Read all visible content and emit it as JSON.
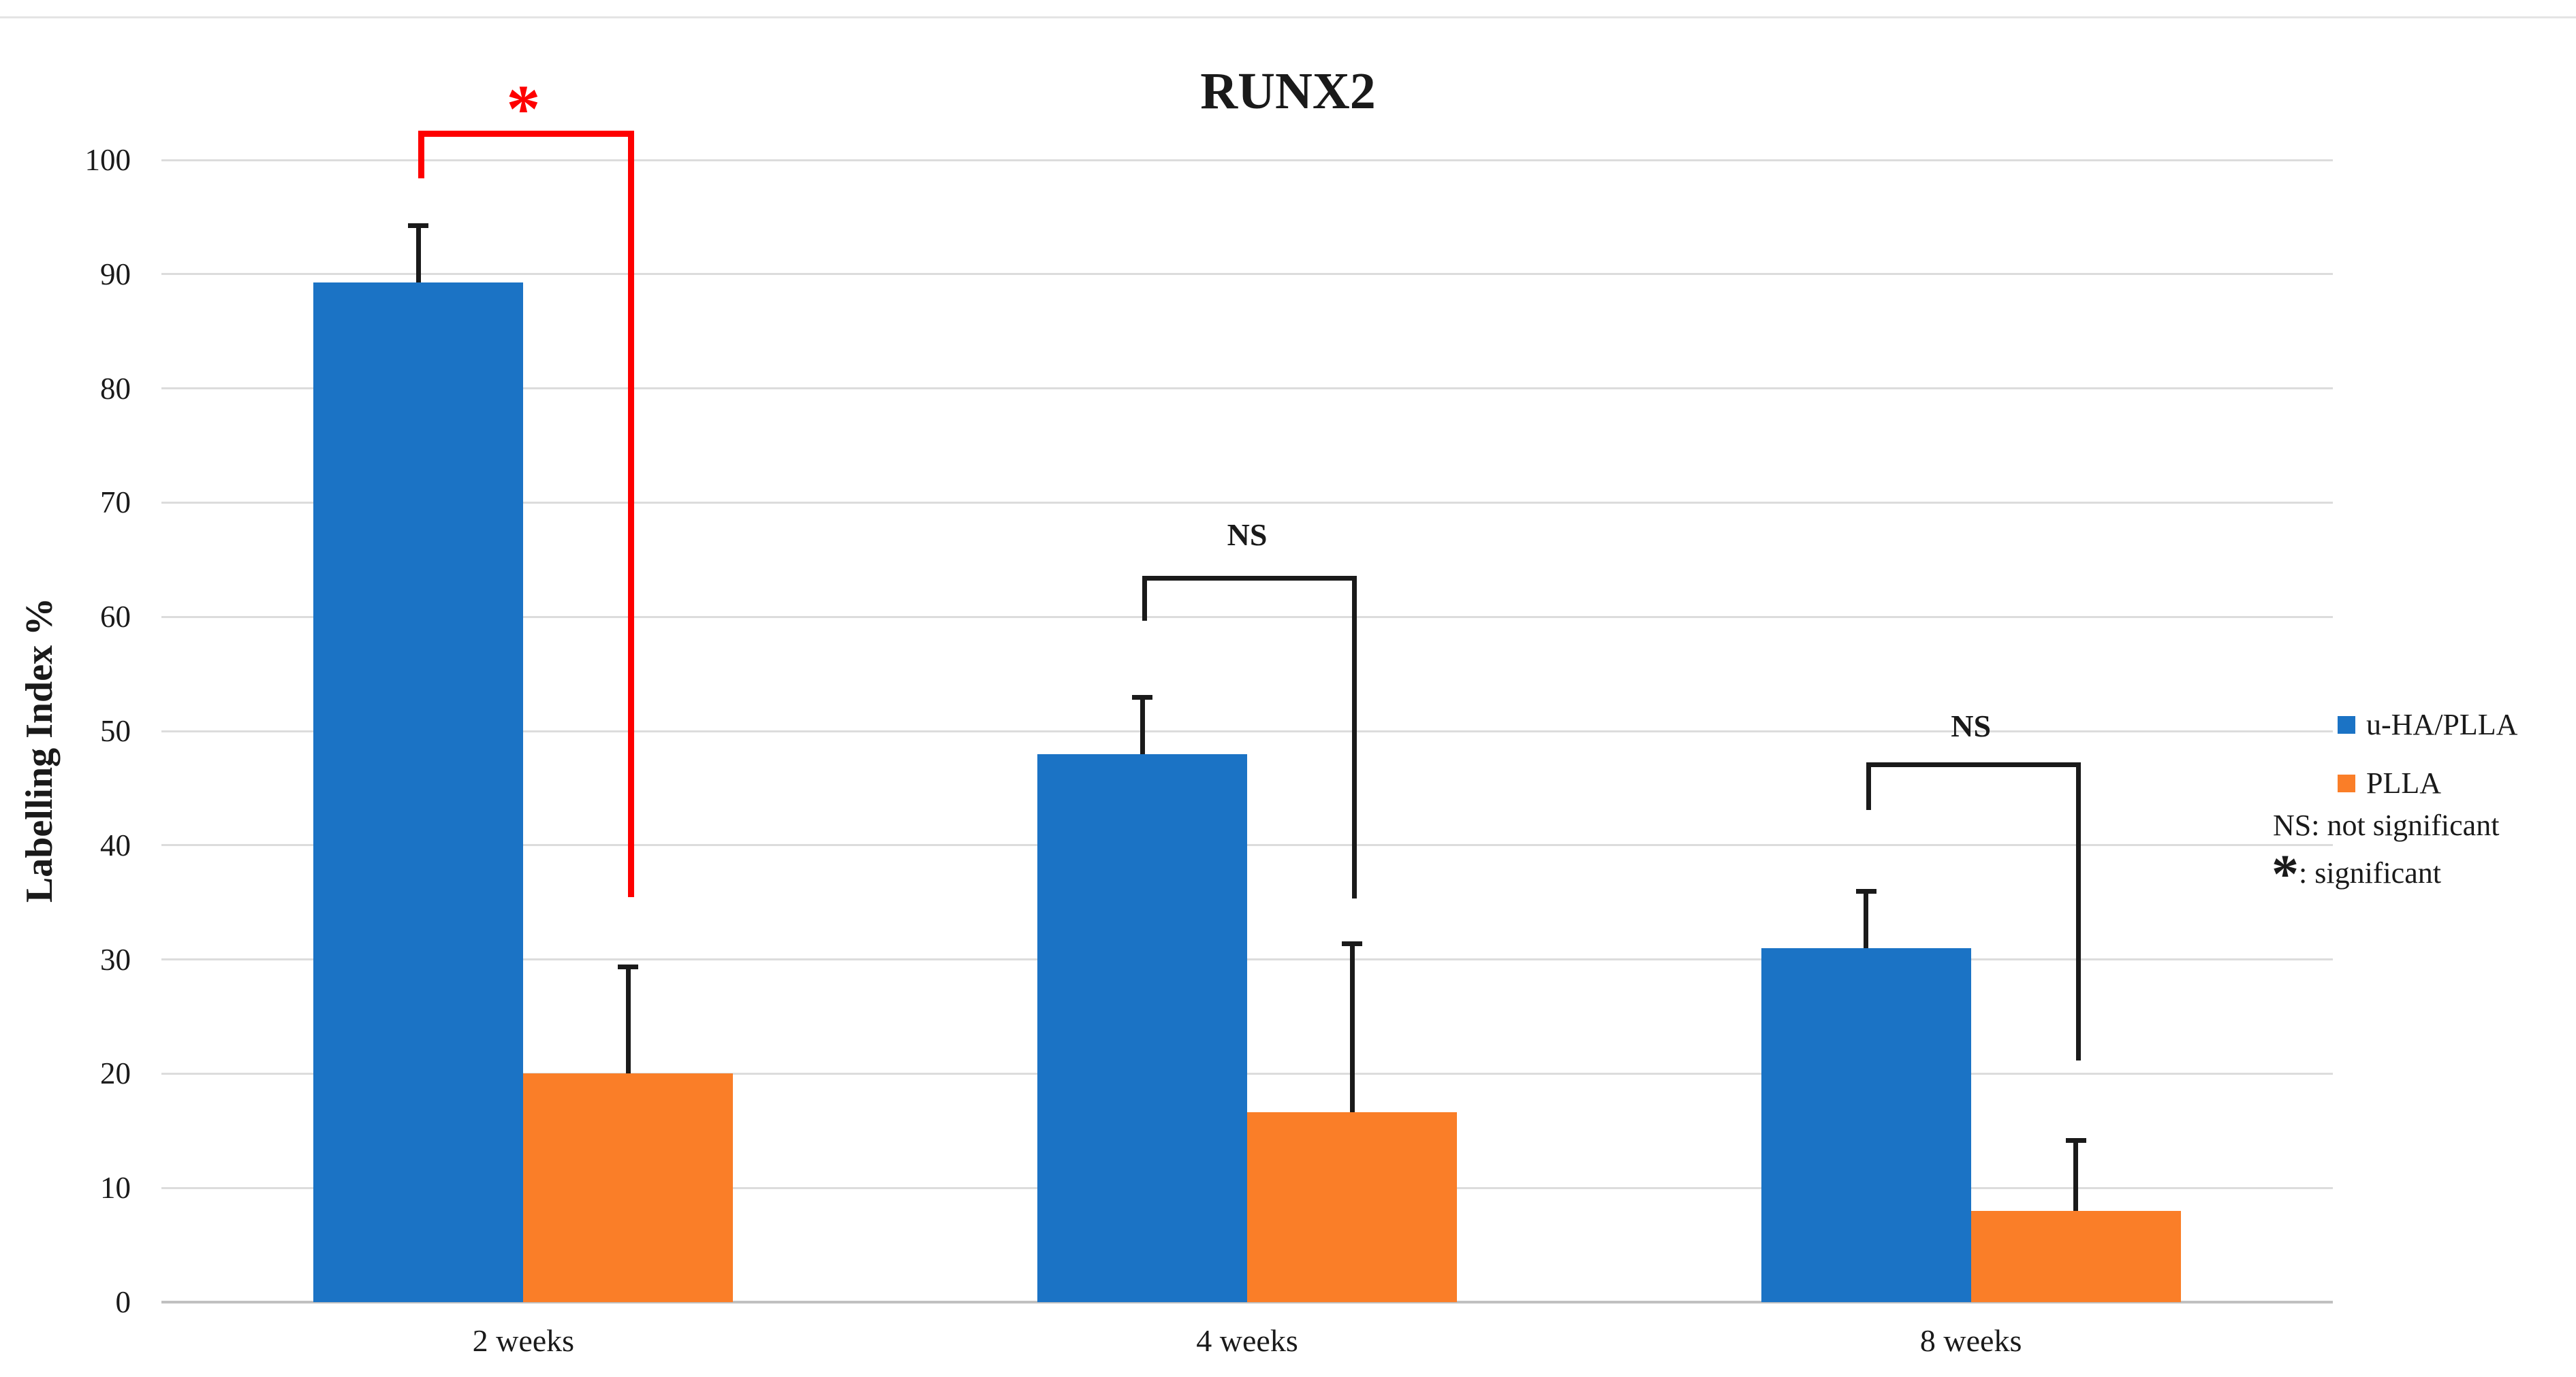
{
  "chart_data": {
    "type": "bar",
    "title": "RUNX2",
    "ylabel": "Labelling Index %",
    "xlabel": "",
    "ylim": [
      0,
      100
    ],
    "y_tick_labels": [
      "0",
      "10",
      "20",
      "30",
      "40",
      "50",
      "60",
      "70",
      "80",
      "90",
      "100"
    ],
    "grid": true,
    "legend_position": "right",
    "categories": [
      "2 weeks",
      "4 weeks",
      "8 weeks"
    ],
    "series": [
      {
        "name": "u-HA/PLLA",
        "color": "#1b73c5",
        "values": [
          89.3,
          48,
          31
        ],
        "errors": [
          5,
          5,
          5
        ]
      },
      {
        "name": "PLLA",
        "color": "#fa7e28",
        "values": [
          20,
          16.6,
          8
        ],
        "errors": [
          9.4,
          14.8,
          6.2
        ]
      }
    ],
    "annotations": [
      {
        "category": "2 weeks",
        "label": "*",
        "color": "#fe0000"
      },
      {
        "category": "4 weeks",
        "label": "NS",
        "color": "#1a1a1a"
      },
      {
        "category": "8 weeks",
        "label": "NS",
        "color": "#1a1a1a"
      }
    ],
    "legend_notes": [
      {
        "symbol": "NS",
        "text": ": not significant"
      },
      {
        "symbol": "*",
        "text": ": significant"
      }
    ]
  }
}
